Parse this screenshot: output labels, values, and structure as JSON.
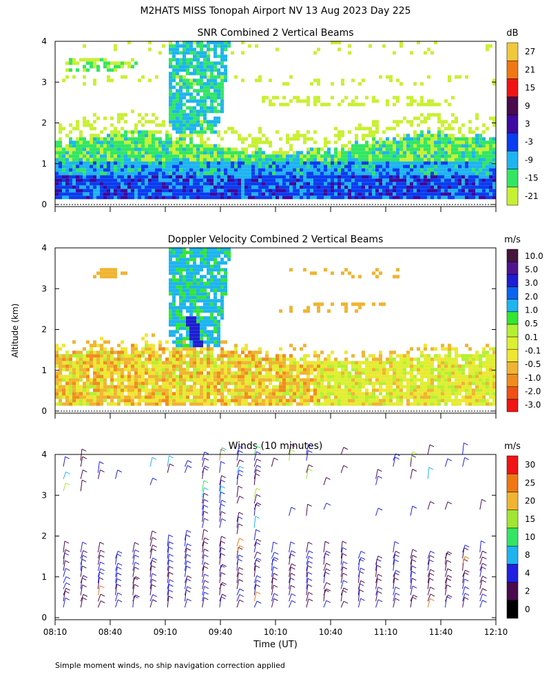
{
  "header": {
    "title": "M2HATS MISS Tonopah Airport NV  13 Aug 2023 Day 225"
  },
  "shared": {
    "ylabel": "Altitude (km)",
    "xlabel": "Time (UT)",
    "y_ticks": [
      "0",
      "1",
      "2",
      "3",
      "4"
    ],
    "x_ticks": [
      "08:10",
      "08:40",
      "09:10",
      "09:40",
      "10:10",
      "10:40",
      "11:10",
      "11:40",
      "12:10"
    ]
  },
  "footer": {
    "note": "Simple moment winds, no ship navigation correction applied"
  },
  "colors": {
    "snr_scale": [
      "#c8f032",
      "#32e664",
      "#1eb4f0",
      "#0a3cf0",
      "#3c0aa0",
      "#4a0a4e",
      "#f01414",
      "#f07814",
      "#f0c83c"
    ],
    "vel_scale": [
      "#f01414",
      "#f05014",
      "#f08c1e",
      "#f0b432",
      "#f0e632",
      "#dcf032",
      "#b4f032",
      "#32e632",
      "#1eb4f0",
      "#0a64f0",
      "#1e1ed2",
      "#50148c",
      "#46143c"
    ],
    "wind_scale": [
      "#000000",
      "#4a0a4e",
      "#2020e0",
      "#1eb4f0",
      "#32e664",
      "#a0e632",
      "#f0b432",
      "#f07814",
      "#f01414"
    ]
  },
  "chart_data": [
    {
      "type": "heatmap",
      "title": "SNR Combined 2 Vertical Beams",
      "ylabel": "Altitude (km)",
      "xlabel": "",
      "ylim": [
        0,
        4
      ],
      "xlim": [
        "08:10",
        "12:10"
      ],
      "colorbar": {
        "unit": "dB",
        "labels": [
          "-21",
          "-15",
          "-9",
          "-3",
          "3",
          "9",
          "15",
          "21",
          "27"
        ]
      },
      "features": [
        {
          "desc": "strong return layer",
          "alt_range_km": [
            0.1,
            0.7
          ],
          "snr_dB": [
            -9,
            3
          ]
        },
        {
          "desc": "moderate return layer",
          "alt_range_km": [
            0.7,
            1.6
          ],
          "snr_dB": [
            -21,
            -9
          ]
        },
        {
          "desc": "cloud/virga column",
          "time_range": [
            "09:10",
            "09:50"
          ],
          "alt_range_km": [
            1.8,
            4.0
          ],
          "snr_dB": [
            -15,
            -9
          ]
        },
        {
          "desc": "elevated layer",
          "alt_range_km": [
            3.2,
            3.5
          ],
          "snr_dB": [
            -21,
            -15
          ]
        }
      ]
    },
    {
      "type": "heatmap",
      "title": "Doppler Velocity Combined 2 Vertical Beams",
      "ylabel": "Altitude (km)",
      "xlabel": "",
      "ylim": [
        0,
        4
      ],
      "xlim": [
        "08:10",
        "12:10"
      ],
      "colorbar": {
        "unit": "m/s",
        "labels": [
          "-3.0",
          "-2.0",
          "-1.0",
          "-0.5",
          "-0.1",
          "0.1",
          "0.5",
          "1.0",
          "2.0",
          "3.0",
          "5.0",
          "10.0"
        ]
      },
      "features": [
        {
          "desc": "boundary layer mixed velocities",
          "alt_range_km": [
            0.1,
            1.5
          ],
          "vel_ms": [
            -1.0,
            0.5
          ]
        },
        {
          "desc": "fall streak",
          "time_range": [
            "09:10",
            "09:50"
          ],
          "alt_range_km": [
            1.5,
            4.0
          ],
          "vel_ms": [
            1.0,
            5.0
          ]
        },
        {
          "desc": "elevated layer",
          "alt_range_km": [
            3.2,
            3.5
          ],
          "vel_ms": [
            -1.0,
            -0.5
          ]
        }
      ]
    },
    {
      "type": "scatter",
      "title": "Winds (10 minutes)",
      "ylabel": "Altitude (km)",
      "xlabel": "Time (UT)",
      "ylim": [
        0,
        4
      ],
      "xlim": [
        "08:10",
        "12:10"
      ],
      "colorbar": {
        "unit": "m/s",
        "labels": [
          "0",
          "2",
          "4",
          "8",
          "10",
          "15",
          "20",
          "25",
          "30"
        ]
      },
      "features": [
        {
          "desc": "wind barbs every 10 minutes",
          "alt_range_km": [
            0.2,
            4.0
          ],
          "speed_ms": [
            2,
            20
          ]
        }
      ]
    }
  ]
}
